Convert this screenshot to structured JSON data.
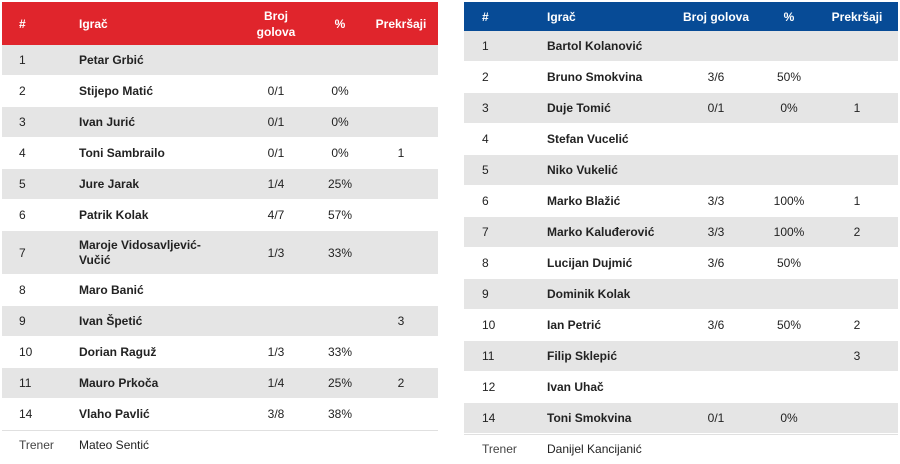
{
  "left": {
    "header": {
      "num": "#",
      "player": "Igrač",
      "goals": "Broj golova",
      "pct": "%",
      "fouls": "Prekršaji"
    },
    "rows": [
      {
        "num": "1",
        "name": "Petar Grbić",
        "goals": "",
        "pct": "",
        "fouls": ""
      },
      {
        "num": "2",
        "name": "Stijepo Matić",
        "goals": "0/1",
        "pct": "0%",
        "fouls": ""
      },
      {
        "num": "3",
        "name": "Ivan Jurić",
        "goals": "0/1",
        "pct": "0%",
        "fouls": ""
      },
      {
        "num": "4",
        "name": "Toni Sambrailo",
        "goals": "0/1",
        "pct": "0%",
        "fouls": "1"
      },
      {
        "num": "5",
        "name": "Jure Jarak",
        "goals": "1/4",
        "pct": "25%",
        "fouls": ""
      },
      {
        "num": "6",
        "name": "Patrik Kolak",
        "goals": "4/7",
        "pct": "57%",
        "fouls": ""
      },
      {
        "num": "7",
        "name": "Maroje Vidosavljević-Vučić",
        "goals": "1/3",
        "pct": "33%",
        "fouls": ""
      },
      {
        "num": "8",
        "name": "Maro Banić",
        "goals": "",
        "pct": "",
        "fouls": ""
      },
      {
        "num": "9",
        "name": "Ivan Špetić",
        "goals": "",
        "pct": "",
        "fouls": "3"
      },
      {
        "num": "10",
        "name": "Dorian Raguž",
        "goals": "1/3",
        "pct": "33%",
        "fouls": ""
      },
      {
        "num": "11",
        "name": "Mauro Prkoča",
        "goals": "1/4",
        "pct": "25%",
        "fouls": "2"
      },
      {
        "num": "14",
        "name": "Vlaho Pavlić",
        "goals": "3/8",
        "pct": "38%",
        "fouls": ""
      }
    ],
    "coach": {
      "label": "Trener",
      "name": "Mateo Sentić"
    }
  },
  "right": {
    "header": {
      "num": "#",
      "player": "Igrač",
      "goals": "Broj golova",
      "pct": "%",
      "fouls": "Prekršaji"
    },
    "rows": [
      {
        "num": "1",
        "name": "Bartol Kolanović",
        "goals": "",
        "pct": "",
        "fouls": ""
      },
      {
        "num": "2",
        "name": "Bruno Smokvina",
        "goals": "3/6",
        "pct": "50%",
        "fouls": ""
      },
      {
        "num": "3",
        "name": "Duje Tomić",
        "goals": "0/1",
        "pct": "0%",
        "fouls": "1"
      },
      {
        "num": "4",
        "name": "Stefan Vucelić",
        "goals": "",
        "pct": "",
        "fouls": ""
      },
      {
        "num": "5",
        "name": "Niko Vukelić",
        "goals": "",
        "pct": "",
        "fouls": ""
      },
      {
        "num": "6",
        "name": "Marko Blažić",
        "goals": "3/3",
        "pct": "100%",
        "fouls": "1"
      },
      {
        "num": "7",
        "name": "Marko Kaluđerović",
        "goals": "3/3",
        "pct": "100%",
        "fouls": "2"
      },
      {
        "num": "8",
        "name": "Lucijan Dujmić",
        "goals": "3/6",
        "pct": "50%",
        "fouls": ""
      },
      {
        "num": "9",
        "name": "Dominik Kolak",
        "goals": "",
        "pct": "",
        "fouls": ""
      },
      {
        "num": "10",
        "name": "Ian Petrić",
        "goals": "3/6",
        "pct": "50%",
        "fouls": "2"
      },
      {
        "num": "11",
        "name": "Filip Sklepić",
        "goals": "",
        "pct": "",
        "fouls": "3"
      },
      {
        "num": "12",
        "name": "Ivan Uhač",
        "goals": "",
        "pct": "",
        "fouls": ""
      },
      {
        "num": "14",
        "name": "Toni Smokvina",
        "goals": "0/1",
        "pct": "0%",
        "fouls": ""
      }
    ],
    "coach": {
      "label": "Trener",
      "name": "Danijel Kancijanić"
    }
  },
  "colors": {
    "left_header": "#e0252c",
    "right_header": "#074b96",
    "stripe": "#e5e5e5"
  }
}
